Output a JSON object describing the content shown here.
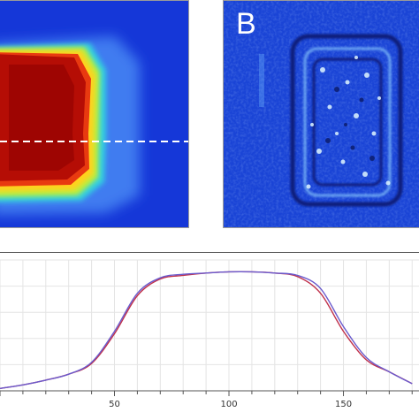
{
  "panel_a": {
    "label": ""
  },
  "panel_b": {
    "label": "B"
  },
  "profile_plot": {
    "x_ticks": [
      "50",
      "100",
      "150"
    ],
    "colors": {
      "series_1": "#c0304a",
      "series_2": "#6a5acd"
    }
  },
  "chart_data": {
    "type": "line",
    "x": [
      0,
      10,
      20,
      30,
      40,
      50,
      60,
      70,
      80,
      90,
      100,
      110,
      120,
      130,
      140,
      150,
      160,
      170,
      180
    ],
    "series": [
      {
        "values": [
          0.02,
          0.05,
          0.09,
          0.14,
          0.23,
          0.48,
          0.8,
          0.94,
          0.97,
          0.99,
          1.0,
          1.0,
          0.99,
          0.96,
          0.82,
          0.5,
          0.26,
          0.16,
          0.06
        ]
      },
      {
        "values": [
          0.02,
          0.05,
          0.09,
          0.14,
          0.24,
          0.5,
          0.82,
          0.95,
          0.98,
          0.99,
          1.0,
          1.0,
          0.99,
          0.97,
          0.86,
          0.54,
          0.28,
          0.16,
          0.06
        ]
      }
    ],
    "xlim": [
      0,
      183
    ],
    "ylim": [
      0,
      1.1
    ],
    "grid": true
  }
}
